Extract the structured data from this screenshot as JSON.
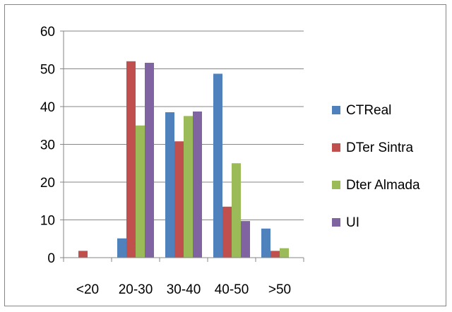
{
  "chart_data": {
    "type": "bar",
    "title": "",
    "xlabel": "",
    "ylabel": "",
    "categories": [
      "<20",
      "20-30",
      "30-40",
      "40-50",
      ">50"
    ],
    "ylim": [
      0,
      60
    ],
    "yticks": [
      0,
      10,
      20,
      30,
      40,
      50,
      60
    ],
    "grid": true,
    "legend_position": "right",
    "series": [
      {
        "name": "CTReal",
        "color": "#4f81bd",
        "values": [
          0,
          5.1,
          38.5,
          48.7,
          7.7
        ]
      },
      {
        "name": "DTer Sintra",
        "color": "#c0504d",
        "values": [
          1.8,
          52,
          30.8,
          13.5,
          1.8
        ]
      },
      {
        "name": "Dter Almada",
        "color": "#9bbb59",
        "values": [
          0,
          35,
          37.5,
          25,
          2.5
        ]
      },
      {
        "name": "UI",
        "color": "#8064a2",
        "values": [
          0,
          51.6,
          38.7,
          9.7,
          0
        ]
      }
    ]
  }
}
